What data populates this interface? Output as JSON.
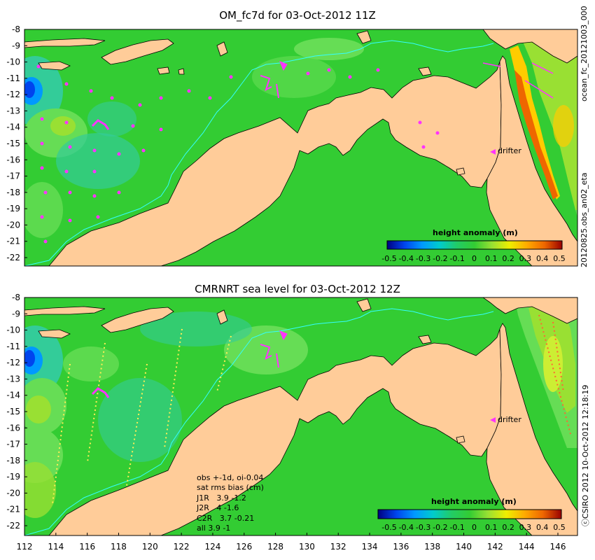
{
  "panels": [
    {
      "title": "OM_fc7d for 03-Oct-2012 11Z",
      "side_label": "ocean_fc_20121003_000",
      "side_label_2": "20120825.obs_an02_eta",
      "drifter_label": "drifter",
      "colorbar": {
        "title": "height anomaly (m)",
        "ticks": [
          "-0.5",
          "-0.4",
          "-0.3",
          "-0.2",
          "-0.1",
          "0",
          "0.1",
          "0.2",
          "0.3",
          "0.4",
          "0.5"
        ]
      }
    },
    {
      "title": "CMRNRT sea level  for 03-Oct-2012 12Z",
      "side_label": "ⓒCSIRO 2012   10-Oct-2012 12:18:19",
      "drifter_label": "drifter",
      "colorbar": {
        "title": "height anomaly (m)",
        "ticks": [
          "-0.5",
          "-0.4",
          "-0.3",
          "-0.2",
          "-0.1",
          "0",
          "0.1",
          "0.2",
          "0.3",
          "0.4",
          "0.5"
        ]
      },
      "stats_lines": [
        "obs +-1d, oi-0.04",
        "sat rms bias (cm)",
        "J1R   3.9 -1.2",
        "J2R   4 -1.6",
        "C2R   3.7 -0.21",
        "all 3.9 -1"
      ]
    }
  ],
  "y_ticks": [
    "-8",
    "-9",
    "-10",
    "-11",
    "-12",
    "-13",
    "-14",
    "-15",
    "-16",
    "-17",
    "-18",
    "-19",
    "-20",
    "-21",
    "-22"
  ],
  "x_ticks": [
    "112",
    "114",
    "116",
    "118",
    "120",
    "122",
    "124",
    "126",
    "128",
    "130",
    "132",
    "134",
    "136",
    "138",
    "140",
    "142",
    "144",
    "146"
  ],
  "colors": {
    "land": "#ffcc99",
    "ocean_base": "#33cc33",
    "ocean_light": "#66dd55",
    "ocean_cyan": "#33cc99",
    "isobath": "#33ffff",
    "arrow": "#ff33ff"
  }
}
